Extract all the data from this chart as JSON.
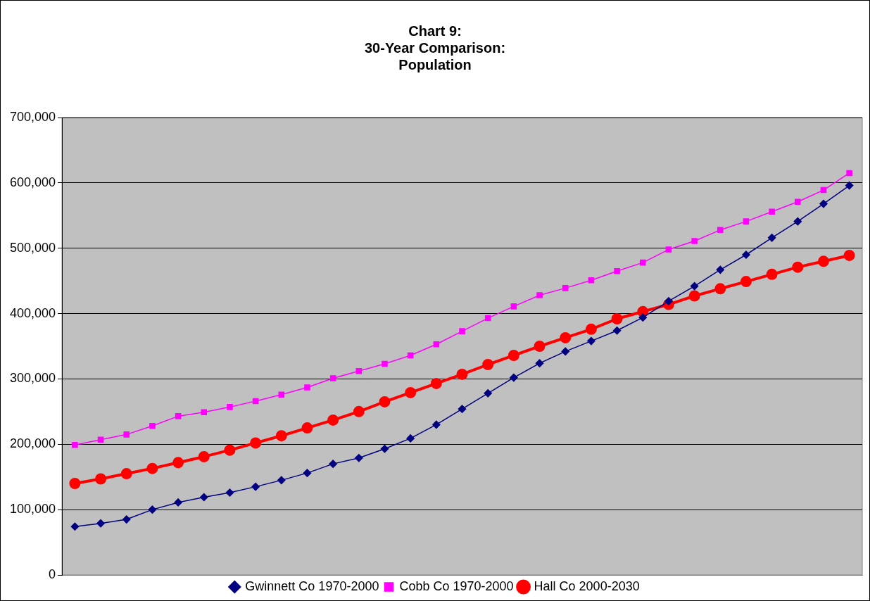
{
  "chart_data": {
    "type": "line",
    "title": "Chart 9:\n30-Year Comparison:\nPopulation",
    "categories": [
      null,
      null,
      null,
      null,
      null,
      null,
      null,
      null,
      null,
      null,
      null,
      null,
      null,
      null,
      null,
      null,
      null,
      null,
      null,
      null,
      null,
      null,
      null,
      null,
      null,
      null,
      null,
      null,
      null,
      null,
      null
    ],
    "series": [
      {
        "name": "Gwinnett Co 1970-2000",
        "color": "#000080",
        "marker": "diamond",
        "values": [
          74000,
          79000,
          85000,
          100000,
          111000,
          119000,
          126000,
          135000,
          145000,
          156000,
          170000,
          179000,
          193000,
          209000,
          230000,
          254000,
          278000,
          302000,
          324000,
          342000,
          358000,
          374000,
          394000,
          419000,
          442000,
          467000,
          490000,
          516000,
          541000,
          568000,
          596000
        ]
      },
      {
        "name": "Cobb Co 1970-2000",
        "color": "#ff00ff",
        "marker": "square",
        "values": [
          199000,
          207000,
          215000,
          228000,
          243000,
          249000,
          257000,
          266000,
          276000,
          287000,
          301000,
          312000,
          323000,
          336000,
          353000,
          373000,
          393000,
          411000,
          428000,
          439000,
          451000,
          465000,
          478000,
          498000,
          511000,
          528000,
          541000,
          556000,
          571000,
          589000,
          615000
        ]
      },
      {
        "name": "Hall Co 2000-2030",
        "color": "#ff0000",
        "marker": "circle",
        "values": [
          140000,
          147000,
          155000,
          163000,
          172000,
          181000,
          191000,
          202000,
          213000,
          225000,
          237000,
          250000,
          265000,
          279000,
          293000,
          307000,
          322000,
          336000,
          350000,
          363000,
          376000,
          392000,
          403000,
          414000,
          427000,
          438000,
          449000,
          460000,
          471000,
          480000,
          489000
        ]
      }
    ],
    "ylim": [
      0,
      700000
    ],
    "yticks": [
      0,
      {
        "value": 100000,
        "label": "100,000"
      },
      {
        "value": 200000,
        "label": "200,000"
      },
      {
        "value": 300000,
        "label": "300,000"
      },
      {
        "value": 400000,
        "label": "400,000"
      },
      {
        "value": 500000,
        "label": "500,000"
      },
      {
        "value": 600000,
        "label": "600,000"
      },
      {
        "value": 700000,
        "label": "700,000"
      }
    ],
    "grid": "y",
    "legend": "bottom"
  }
}
